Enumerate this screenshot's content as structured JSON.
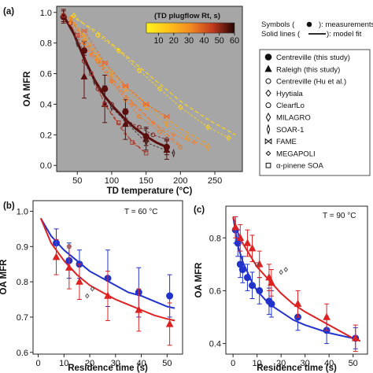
{
  "chart_data": [
    {
      "type": "line",
      "panel_label": "(a)",
      "xlabel": "TD temperature (°C)",
      "ylabel": "OA MFR",
      "xlim": [
        20,
        290
      ],
      "ylim": [
        -0.04,
        1.04
      ],
      "xticks": [
        "50",
        "100",
        "150",
        "200",
        "250"
      ],
      "xtick_values": [
        50,
        100,
        150,
        200,
        250
      ],
      "yticks": [
        "0.0",
        "0.2",
        "0.4",
        "0.6",
        "0.8",
        "1.0"
      ],
      "ytick_values": [
        0.0,
        0.2,
        0.4,
        0.6,
        0.8,
        1.0
      ],
      "plot_bg": "#a6a6a6",
      "colorbar": {
        "title": "(TD plugflow Rt, s)",
        "ticks": [
          "10",
          "20",
          "30",
          "40",
          "50",
          "60"
        ],
        "tick_values": [
          10,
          20,
          30,
          40,
          50,
          60
        ],
        "range": [
          2,
          60
        ]
      },
      "notes": [
        "Symbols (",
        "): measurements",
        "Solid lines (",
        "): model fit"
      ],
      "legend": [
        {
          "label": "Centreville (this study)",
          "marker": "circle-filled"
        },
        {
          "label": "Raleigh (this study)",
          "marker": "triangle-filled"
        },
        {
          "label": "Centreville (Hu et al.)",
          "marker": "circle-open"
        },
        {
          "label": "Hyytiala",
          "marker": "diamond-open"
        },
        {
          "label": "ClearfLo",
          "marker": "circle-open"
        },
        {
          "label": "MILAGRO",
          "marker": "diamond-tall"
        },
        {
          "label": "SOAR-1",
          "marker": "diamond-thin"
        },
        {
          "label": "FAME",
          "marker": "bowtie"
        },
        {
          "label": "MEGAPOLI",
          "marker": "diamond-small"
        },
        {
          "label": "α-pinene SOA",
          "marker": "square-open"
        }
      ],
      "series": [
        {
          "name": "Centreville (this study)",
          "marker": "circle-filled",
          "color": "#5a0f0f",
          "x": [
            30,
            60,
            90,
            120,
            150,
            180
          ],
          "y": [
            0.97,
            0.75,
            0.5,
            0.35,
            0.19,
            0.12
          ],
          "err": [
            0.04,
            0.06,
            0.09,
            0.08,
            0.06,
            0.05
          ]
        },
        {
          "name": "Raleigh (this study)",
          "marker": "triangle-filled",
          "color": "#5a0f0f",
          "x": [
            30,
            60,
            90,
            120,
            150,
            180
          ],
          "y": [
            0.98,
            0.58,
            0.4,
            0.27,
            0.17,
            0.1
          ],
          "err": [
            0.04,
            0.14,
            0.12,
            0.1,
            0.07,
            0.06
          ]
        },
        {
          "name": "Centreville (Hu et al.)",
          "marker": "circle-open",
          "color": "#7a1d1d",
          "x": [
            40,
            60,
            80,
            100,
            120,
            140,
            160,
            180
          ],
          "y": [
            0.93,
            0.68,
            0.5,
            0.4,
            0.3,
            0.25,
            0.2,
            0.17
          ]
        },
        {
          "name": "Hyytiala",
          "marker": "diamond-open",
          "color": "#ffd51a",
          "x": [
            45,
            80,
            110,
            140,
            170,
            200,
            240,
            270
          ],
          "y": [
            0.98,
            0.85,
            0.75,
            0.62,
            0.5,
            0.38,
            0.25,
            0.18
          ]
        },
        {
          "name": "ClearfLo",
          "marker": "circle-open",
          "color": "#ee7a24",
          "x": [
            40,
            60,
            80,
            100,
            120,
            140,
            170,
            200
          ],
          "y": [
            0.96,
            0.8,
            0.68,
            0.55,
            0.43,
            0.32,
            0.22,
            0.12
          ]
        },
        {
          "name": "MILAGRO",
          "marker": "diamond-tall",
          "color": "#f39a20",
          "x": [
            40,
            60,
            80,
            100,
            120,
            150,
            180,
            210,
            240
          ],
          "y": [
            0.95,
            0.84,
            0.7,
            0.6,
            0.5,
            0.38,
            0.27,
            0.18,
            0.12
          ]
        },
        {
          "name": "SOAR-1",
          "marker": "diamond-thin",
          "color": "#4a2a2a",
          "x": [
            50,
            75,
            100,
            150,
            190
          ],
          "y": [
            0.8,
            0.55,
            0.38,
            0.15,
            0.08
          ]
        },
        {
          "name": "FAME",
          "marker": "bowtie",
          "color": "#e8622a",
          "x": [
            60,
            90,
            120,
            150,
            180
          ],
          "y": [
            0.88,
            0.67,
            0.52,
            0.4,
            0.32
          ]
        },
        {
          "name": "MEGAPOLI",
          "marker": "diamond-small",
          "color": "#f57a32",
          "x": [
            40,
            70,
            100,
            130,
            160,
            190,
            220
          ],
          "y": [
            0.93,
            0.72,
            0.55,
            0.4,
            0.28,
            0.2,
            0.15
          ]
        },
        {
          "name": "α-pinene SOA",
          "marker": "square-open",
          "color": "#ad3b2c",
          "x": [
            30,
            50,
            70,
            90,
            110,
            130,
            150
          ],
          "y": [
            0.98,
            0.85,
            0.6,
            0.4,
            0.28,
            0.15,
            0.08
          ]
        }
      ],
      "dashed_fits": [
        {
          "color": "#ffd51a",
          "x": [
            40,
            80,
            120,
            160,
            200,
            240,
            280
          ],
          "y": [
            0.98,
            0.87,
            0.72,
            0.57,
            0.42,
            0.3,
            0.2
          ]
        },
        {
          "color": "#f39a20",
          "x": [
            40,
            80,
            120,
            160,
            200,
            240
          ],
          "y": [
            0.97,
            0.72,
            0.52,
            0.37,
            0.24,
            0.14
          ]
        },
        {
          "color": "#ee7a24",
          "x": [
            40,
            80,
            120,
            160,
            200
          ],
          "y": [
            0.96,
            0.69,
            0.46,
            0.28,
            0.13
          ]
        },
        {
          "color": "#ad3b2c",
          "x": [
            30,
            60,
            90,
            120,
            150
          ],
          "y": [
            0.98,
            0.72,
            0.4,
            0.2,
            0.08
          ]
        }
      ],
      "model_fit": {
        "color": "#5a0f0f",
        "x": [
          30,
          45,
          60,
          75,
          90,
          105,
          120,
          135,
          150,
          165,
          180
        ],
        "y": [
          0.98,
          0.86,
          0.7,
          0.56,
          0.45,
          0.37,
          0.3,
          0.24,
          0.19,
          0.15,
          0.12
        ]
      }
    },
    {
      "type": "scatter",
      "panel_label": "(b)",
      "annotation": "T = 60 °C",
      "xlabel": "Residence time (s)",
      "ylabel": "OA MFR",
      "xlim": [
        -2,
        56
      ],
      "ylim": [
        0.595,
        1.03
      ],
      "xticks": [
        "0",
        "10",
        "20",
        "30",
        "40",
        "50"
      ],
      "xtick_values": [
        0,
        10,
        20,
        30,
        40,
        50
      ],
      "yticks": [
        "0.6",
        "0.7",
        "0.8",
        "0.9",
        "1.0"
      ],
      "ytick_values": [
        0.6,
        0.7,
        0.8,
        0.9,
        1.0
      ],
      "series": [
        {
          "marker": "circle-filled",
          "color": "#2233cc",
          "x": [
            7,
            12,
            16,
            27,
            39,
            51
          ],
          "y": [
            0.91,
            0.86,
            0.85,
            0.81,
            0.77,
            0.76
          ],
          "err": [
            0.04,
            0.05,
            0.04,
            0.08,
            0.07,
            0.06
          ]
        },
        {
          "marker": "triangle-filled",
          "color": "#dd2222",
          "x": [
            7,
            12,
            16,
            27,
            39,
            51
          ],
          "y": [
            0.87,
            0.84,
            0.8,
            0.76,
            0.72,
            0.68
          ],
          "err": [
            0.05,
            0.06,
            0.05,
            0.07,
            0.06,
            0.06
          ]
        },
        {
          "marker": "square-open",
          "color": "#8a3a3a",
          "x": [
            12
          ],
          "y": [
            0.9
          ]
        },
        {
          "marker": "diamond-open",
          "color": "#555555",
          "x": [
            19,
            21
          ],
          "y": [
            0.76,
            0.78
          ]
        }
      ],
      "fits": [
        {
          "color": "#2233cc",
          "x": [
            1,
            5,
            10,
            15,
            20,
            25,
            30,
            35,
            40,
            45,
            50,
            53
          ],
          "y": [
            0.98,
            0.93,
            0.89,
            0.86,
            0.83,
            0.81,
            0.79,
            0.77,
            0.76,
            0.745,
            0.73,
            0.725
          ]
        },
        {
          "color": "#dd2222",
          "x": [
            1,
            5,
            10,
            15,
            20,
            25,
            30,
            35,
            40,
            45,
            50,
            53
          ],
          "y": [
            0.98,
            0.91,
            0.86,
            0.82,
            0.79,
            0.77,
            0.75,
            0.735,
            0.72,
            0.705,
            0.695,
            0.69
          ]
        }
      ]
    },
    {
      "type": "scatter",
      "panel_label": "(c)",
      "annotation": "T = 90 °C",
      "xlabel": "Residence time (s)",
      "ylabel": "OA MFR",
      "xlim": [
        -3,
        56
      ],
      "ylim": [
        0.36,
        0.92
      ],
      "xticks": [
        "0",
        "10",
        "20",
        "30",
        "40",
        "50"
      ],
      "xtick_values": [
        0,
        10,
        20,
        30,
        40,
        50
      ],
      "yticks": [
        "0.4",
        "0.6",
        "0.8"
      ],
      "ytick_values": [
        0.4,
        0.6,
        0.8
      ],
      "series": [
        {
          "marker": "circle-filled",
          "color": "#2233cc",
          "x": [
            1,
            2,
            3,
            4,
            6,
            8,
            11,
            15,
            16,
            27,
            39,
            51
          ],
          "y": [
            0.83,
            0.78,
            0.7,
            0.68,
            0.65,
            0.62,
            0.6,
            0.56,
            0.55,
            0.5,
            0.45,
            0.42
          ],
          "err": [
            0.05,
            0.05,
            0.05,
            0.05,
            0.05,
            0.05,
            0.05,
            0.05,
            0.05,
            0.05,
            0.05,
            0.04
          ]
        },
        {
          "marker": "triangle-filled",
          "color": "#dd2222",
          "x": [
            1,
            3,
            6,
            8,
            11,
            15,
            16,
            27,
            39,
            51
          ],
          "y": [
            0.84,
            0.8,
            0.78,
            0.76,
            0.7,
            0.65,
            0.63,
            0.55,
            0.5,
            0.42
          ],
          "err": [
            0.04,
            0.05,
            0.05,
            0.05,
            0.05,
            0.05,
            0.05,
            0.05,
            0.05,
            0.05
          ]
        },
        {
          "marker": "square-open",
          "color": "#8a3a3a",
          "x": [
            10
          ],
          "y": [
            0.7
          ]
        },
        {
          "marker": "diamond-open",
          "color": "#555555",
          "x": [
            20,
            22
          ],
          "y": [
            0.67,
            0.68
          ]
        }
      ],
      "fits": [
        {
          "color": "#2233cc",
          "x": [
            0,
            2,
            4,
            6,
            8,
            10,
            15,
            20,
            25,
            30,
            40,
            50,
            53
          ],
          "y": [
            0.88,
            0.77,
            0.71,
            0.67,
            0.63,
            0.6,
            0.55,
            0.52,
            0.49,
            0.47,
            0.44,
            0.42,
            0.41
          ]
        },
        {
          "color": "#dd2222",
          "x": [
            0,
            2,
            4,
            6,
            8,
            10,
            15,
            20,
            25,
            30,
            40,
            50,
            53
          ],
          "y": [
            0.88,
            0.82,
            0.78,
            0.75,
            0.72,
            0.69,
            0.64,
            0.59,
            0.55,
            0.52,
            0.47,
            0.42,
            0.41
          ]
        }
      ]
    }
  ]
}
